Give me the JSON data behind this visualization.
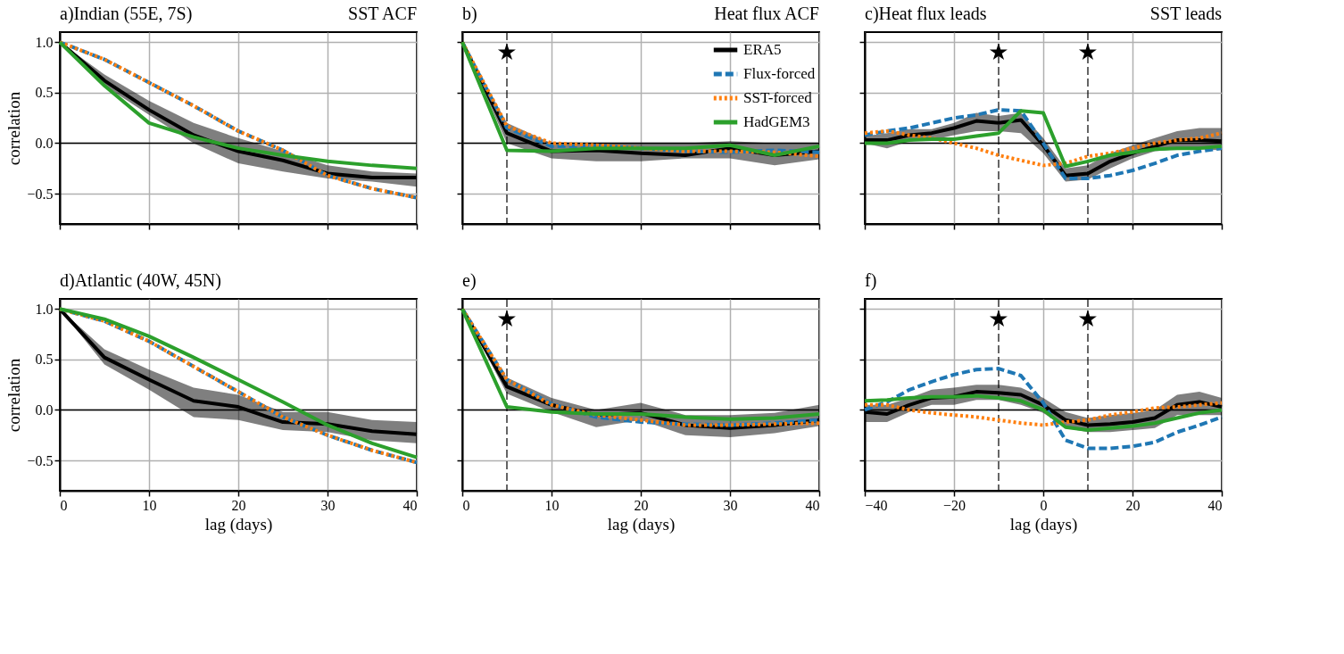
{
  "chart_data": [
    {
      "type": "line",
      "title": "a)Indian (55E, 7S)",
      "subtitle": "SST ACF",
      "ylabel": "correlation",
      "x": [
        0,
        5,
        10,
        15,
        20,
        25,
        30,
        35,
        40
      ],
      "xlim": [
        0,
        40
      ],
      "xticks": [
        0,
        10,
        20,
        30,
        40
      ],
      "ylim": [
        -0.8,
        1.1
      ],
      "yticks": [
        {
          "value": -0.5,
          "label": "−0.5"
        },
        {
          "value": 0,
          "label": "0.0"
        },
        {
          "value": 0.5,
          "label": "0.5"
        },
        {
          "value": 1,
          "label": "1.0"
        }
      ],
      "grid": true,
      "legend": false,
      "tick_labels": "y",
      "ref_lines": [
        {
          "axis": "y",
          "value": 0,
          "color": "#000000",
          "line_style": "solid"
        }
      ],
      "series": [
        {
          "color": "#000000",
          "line_style": "solid",
          "values": [
            1.0,
            0.62,
            0.33,
            0.08,
            -0.08,
            -0.17,
            -0.3,
            -0.34,
            -0.34
          ],
          "lower": [
            1.0,
            0.57,
            0.28,
            0.0,
            -0.2,
            -0.28,
            -0.35,
            -0.38,
            -0.43
          ],
          "upper": [
            1.0,
            0.68,
            0.42,
            0.2,
            0.05,
            -0.08,
            -0.22,
            -0.28,
            -0.3
          ]
        },
        {
          "color": "#1f77b4",
          "line_style": "dashed",
          "values": [
            1.0,
            0.83,
            0.6,
            0.37,
            0.12,
            -0.07,
            -0.32,
            -0.45,
            -0.54
          ]
        },
        {
          "color": "#ff7f0e",
          "line_style": "dotted",
          "values": [
            1.0,
            0.83,
            0.6,
            0.37,
            0.12,
            -0.07,
            -0.32,
            -0.45,
            -0.54
          ]
        },
        {
          "color": "#2ca02c",
          "line_style": "solid",
          "values": [
            1.0,
            0.57,
            0.2,
            0.06,
            -0.05,
            -0.12,
            -0.18,
            -0.22,
            -0.25
          ]
        }
      ]
    },
    {
      "type": "line",
      "title": "b)",
      "subtitle": "Heat flux ACF",
      "x": [
        0,
        5,
        10,
        15,
        20,
        25,
        30,
        35,
        40
      ],
      "xlim": [
        0,
        40
      ],
      "xticks": [
        0,
        10,
        20,
        30,
        40
      ],
      "ylim": [
        -0.8,
        1.1
      ],
      "yticks": [
        -0.5,
        0,
        0.5,
        1
      ],
      "grid": true,
      "legend": "top right",
      "tick_labels": false,
      "ref_lines": [
        {
          "axis": "y",
          "value": 0,
          "color": "#000000",
          "line_style": "solid"
        },
        {
          "axis": "x",
          "value": 5,
          "color": "#000000",
          "line_style": "dashed"
        }
      ],
      "annotations": [
        {
          "text": "★",
          "x": 5,
          "y": 0.9
        }
      ],
      "series": [
        {
          "name": "ERA5",
          "color": "#000000",
          "line_style": "solid",
          "values": [
            1.0,
            0.1,
            -0.08,
            -0.07,
            -0.1,
            -0.12,
            -0.05,
            -0.12,
            -0.08
          ],
          "lower": [
            1.0,
            0.0,
            -0.15,
            -0.18,
            -0.18,
            -0.15,
            -0.15,
            -0.22,
            -0.16
          ],
          "upper": [
            1.0,
            0.2,
            0.0,
            0.0,
            0.0,
            0.0,
            0.02,
            0.0,
            0.0
          ]
        },
        {
          "name": "Flux-forced",
          "color": "#1f77b4",
          "line_style": "dashed",
          "values": [
            1.0,
            0.15,
            -0.03,
            -0.03,
            -0.05,
            -0.08,
            -0.09,
            -0.07,
            -0.09
          ]
        },
        {
          "name": "SST-forced",
          "color": "#ff7f0e",
          "line_style": "dotted",
          "values": [
            1.0,
            0.17,
            0.0,
            -0.02,
            -0.05,
            -0.08,
            -0.08,
            -0.09,
            -0.13
          ]
        },
        {
          "name": "HadGEM3",
          "color": "#2ca02c",
          "line_style": "solid",
          "values": [
            1.0,
            -0.07,
            -0.08,
            -0.05,
            -0.05,
            -0.05,
            -0.02,
            -0.12,
            -0.03
          ]
        }
      ]
    },
    {
      "type": "line",
      "title": "c)Heat flux leads",
      "subtitle": "SST leads",
      "x": [
        -40,
        -35,
        -30,
        -25,
        -20,
        -15,
        -10,
        -5,
        0,
        5,
        10,
        15,
        20,
        25,
        30,
        35,
        40
      ],
      "xlim": [
        -40,
        40
      ],
      "xticks": [
        -40,
        -20,
        0,
        20,
        40
      ],
      "ylim": [
        -0.8,
        1.1
      ],
      "yticks": [
        -0.5,
        0,
        0.5,
        1
      ],
      "grid": true,
      "legend": false,
      "tick_labels": false,
      "ref_lines": [
        {
          "axis": "y",
          "value": 0,
          "color": "#000000",
          "line_style": "solid"
        },
        {
          "axis": "x",
          "value": -10,
          "color": "#000000",
          "line_style": "dashed"
        },
        {
          "axis": "x",
          "value": 10,
          "color": "#000000",
          "line_style": "dashed"
        }
      ],
      "annotations": [
        {
          "text": "★",
          "x": -10,
          "y": 0.9
        },
        {
          "text": "★",
          "x": 10,
          "y": 0.9
        }
      ],
      "series": [
        {
          "color": "#000000",
          "line_style": "solid",
          "values": [
            0.03,
            0.03,
            0.08,
            0.1,
            0.15,
            0.22,
            0.2,
            0.23,
            -0.02,
            -0.32,
            -0.3,
            -0.18,
            -0.1,
            -0.03,
            0.03,
            0.03,
            0.02
          ],
          "lower": [
            0.0,
            -0.05,
            0.02,
            0.03,
            0.08,
            0.12,
            0.12,
            0.1,
            -0.1,
            -0.38,
            -0.36,
            -0.25,
            -0.15,
            -0.08,
            -0.06,
            -0.06,
            -0.07
          ],
          "upper": [
            0.07,
            0.1,
            0.14,
            0.14,
            0.2,
            0.3,
            0.27,
            0.3,
            0.05,
            -0.25,
            -0.22,
            -0.1,
            -0.02,
            0.05,
            0.12,
            0.15,
            0.15
          ]
        },
        {
          "color": "#1f77b4",
          "line_style": "dashed",
          "values": [
            0.08,
            0.12,
            0.15,
            0.2,
            0.25,
            0.28,
            0.33,
            0.32,
            0.0,
            -0.35,
            -0.35,
            -0.32,
            -0.27,
            -0.2,
            -0.12,
            -0.08,
            -0.05
          ]
        },
        {
          "color": "#ff7f0e",
          "line_style": "dotted",
          "values": [
            0.1,
            0.12,
            0.08,
            0.05,
            0.0,
            -0.05,
            -0.12,
            -0.17,
            -0.22,
            -0.2,
            -0.13,
            -0.1,
            -0.05,
            0.0,
            0.03,
            0.05,
            0.1
          ]
        },
        {
          "color": "#2ca02c",
          "line_style": "solid",
          "values": [
            0.0,
            0.0,
            0.03,
            0.04,
            0.04,
            0.07,
            0.1,
            0.32,
            0.3,
            -0.23,
            -0.18,
            -0.12,
            -0.09,
            -0.06,
            -0.05,
            -0.05,
            -0.03
          ]
        }
      ]
    },
    {
      "type": "line",
      "title": "d)Atlantic (40W, 45N)",
      "xlabel": "lag (days)",
      "ylabel": "correlation",
      "x": [
        0,
        5,
        10,
        15,
        20,
        25,
        30,
        35,
        40
      ],
      "xlim": [
        0,
        40
      ],
      "xticks": [
        0,
        10,
        20,
        30,
        40
      ],
      "ylim": [
        -0.8,
        1.1
      ],
      "yticks": [
        {
          "value": -0.5,
          "label": "−0.5"
        },
        {
          "value": 0,
          "label": "0.0"
        },
        {
          "value": 0.5,
          "label": "0.5"
        },
        {
          "value": 1,
          "label": "1.0"
        }
      ],
      "grid": true,
      "legend": false,
      "ref_lines": [
        {
          "axis": "y",
          "value": 0,
          "color": "#000000",
          "line_style": "solid"
        }
      ],
      "series": [
        {
          "color": "#000000",
          "line_style": "solid",
          "values": [
            1.0,
            0.52,
            0.3,
            0.09,
            0.03,
            -0.12,
            -0.14,
            -0.21,
            -0.24
          ],
          "lower": [
            1.0,
            0.45,
            0.2,
            -0.07,
            -0.1,
            -0.2,
            -0.22,
            -0.3,
            -0.33
          ],
          "upper": [
            1.0,
            0.6,
            0.4,
            0.22,
            0.15,
            -0.02,
            -0.02,
            -0.1,
            -0.12
          ]
        },
        {
          "color": "#1f77b4",
          "line_style": "dashed",
          "values": [
            1.0,
            0.88,
            0.68,
            0.43,
            0.18,
            -0.07,
            -0.25,
            -0.4,
            -0.52
          ]
        },
        {
          "color": "#ff7f0e",
          "line_style": "dotted",
          "values": [
            1.0,
            0.88,
            0.68,
            0.43,
            0.18,
            -0.07,
            -0.25,
            -0.4,
            -0.52
          ]
        },
        {
          "color": "#2ca02c",
          "line_style": "solid",
          "values": [
            1.0,
            0.9,
            0.73,
            0.52,
            0.3,
            0.08,
            -0.15,
            -0.33,
            -0.47
          ]
        }
      ]
    },
    {
      "type": "line",
      "title": "e)",
      "xlabel": "lag (days)",
      "x": [
        0,
        5,
        10,
        15,
        20,
        25,
        30,
        35,
        40
      ],
      "xlim": [
        0,
        40
      ],
      "xticks": [
        0,
        10,
        20,
        30,
        40
      ],
      "ylim": [
        -0.8,
        1.1
      ],
      "yticks": [
        -0.5,
        0,
        0.5,
        1
      ],
      "grid": true,
      "legend": false,
      "tick_labels": "x",
      "ref_lines": [
        {
          "axis": "y",
          "value": 0,
          "color": "#000000",
          "line_style": "solid"
        },
        {
          "axis": "x",
          "value": 5,
          "color": "#000000",
          "line_style": "dashed"
        }
      ],
      "annotations": [
        {
          "text": "★",
          "x": 5,
          "y": 0.9
        }
      ],
      "series": [
        {
          "color": "#000000",
          "line_style": "solid",
          "values": [
            1.0,
            0.23,
            0.05,
            -0.05,
            -0.03,
            -0.15,
            -0.18,
            -0.15,
            -0.1
          ],
          "lower": [
            1.0,
            0.16,
            -0.02,
            -0.17,
            -0.1,
            -0.25,
            -0.27,
            -0.23,
            -0.16
          ],
          "upper": [
            1.0,
            0.32,
            0.12,
            0.0,
            0.07,
            -0.05,
            -0.05,
            -0.03,
            0.05
          ]
        },
        {
          "color": "#1f77b4",
          "line_style": "dashed",
          "values": [
            1.0,
            0.3,
            0.06,
            -0.07,
            -0.12,
            -0.14,
            -0.15,
            -0.13,
            -0.1
          ]
        },
        {
          "color": "#ff7f0e",
          "line_style": "dotted",
          "values": [
            1.0,
            0.3,
            0.05,
            -0.05,
            -0.1,
            -0.15,
            -0.15,
            -0.14,
            -0.13
          ]
        },
        {
          "color": "#2ca02c",
          "line_style": "solid",
          "values": [
            1.0,
            0.03,
            -0.02,
            -0.04,
            -0.04,
            -0.07,
            -0.09,
            -0.08,
            -0.04
          ]
        }
      ]
    },
    {
      "type": "line",
      "title": "f)",
      "xlabel": "lag (days)",
      "x": [
        -40,
        -35,
        -30,
        -25,
        -20,
        -15,
        -10,
        -5,
        0,
        5,
        10,
        15,
        20,
        25,
        30,
        35,
        40
      ],
      "xlim": [
        -40,
        40
      ],
      "xticks": [
        {
          "value": -40,
          "label": "−40"
        },
        {
          "value": -20,
          "label": "−20"
        },
        0,
        20,
        40
      ],
      "ylim": [
        -0.8,
        1.1
      ],
      "yticks": [
        -0.5,
        0,
        0.5,
        1
      ],
      "grid": true,
      "legend": false,
      "tick_labels": "x",
      "ref_lines": [
        {
          "axis": "y",
          "value": 0,
          "color": "#000000",
          "line_style": "solid"
        },
        {
          "axis": "x",
          "value": -10,
          "color": "#000000",
          "line_style": "dashed"
        },
        {
          "axis": "x",
          "value": 10,
          "color": "#000000",
          "line_style": "dashed"
        }
      ],
      "annotations": [
        {
          "text": "★",
          "x": -10,
          "y": 0.9
        },
        {
          "text": "★",
          "x": 10,
          "y": 0.9
        }
      ],
      "series": [
        {
          "color": "#000000",
          "line_style": "solid",
          "values": [
            -0.02,
            -0.04,
            0.05,
            0.12,
            0.13,
            0.18,
            0.17,
            0.15,
            0.05,
            -0.1,
            -0.15,
            -0.14,
            -0.12,
            -0.08,
            0.05,
            0.08,
            0.03
          ],
          "lower": [
            -0.12,
            -0.12,
            -0.02,
            0.05,
            0.05,
            0.1,
            0.1,
            0.05,
            -0.03,
            -0.18,
            -0.22,
            -0.22,
            -0.2,
            -0.18,
            -0.05,
            -0.05,
            -0.05
          ],
          "upper": [
            0.05,
            0.05,
            0.12,
            0.2,
            0.22,
            0.25,
            0.25,
            0.22,
            0.12,
            -0.02,
            -0.08,
            -0.05,
            -0.03,
            0.0,
            0.15,
            0.18,
            0.12
          ]
        },
        {
          "color": "#1f77b4",
          "line_style": "dashed",
          "values": [
            0.0,
            0.08,
            0.2,
            0.28,
            0.35,
            0.4,
            0.41,
            0.34,
            0.07,
            -0.3,
            -0.38,
            -0.38,
            -0.36,
            -0.32,
            -0.22,
            -0.15,
            -0.07
          ]
        },
        {
          "color": "#ff7f0e",
          "line_style": "dotted",
          "values": [
            0.05,
            0.05,
            0.0,
            -0.03,
            -0.05,
            -0.07,
            -0.1,
            -0.13,
            -0.15,
            -0.12,
            -0.1,
            -0.05,
            -0.02,
            0.02,
            0.03,
            0.05,
            0.07
          ]
        },
        {
          "color": "#2ca02c",
          "line_style": "solid",
          "values": [
            0.09,
            0.1,
            0.12,
            0.13,
            0.13,
            0.14,
            0.12,
            0.09,
            0.0,
            -0.17,
            -0.2,
            -0.18,
            -0.16,
            -0.13,
            -0.08,
            -0.03,
            0.0
          ]
        }
      ]
    }
  ]
}
